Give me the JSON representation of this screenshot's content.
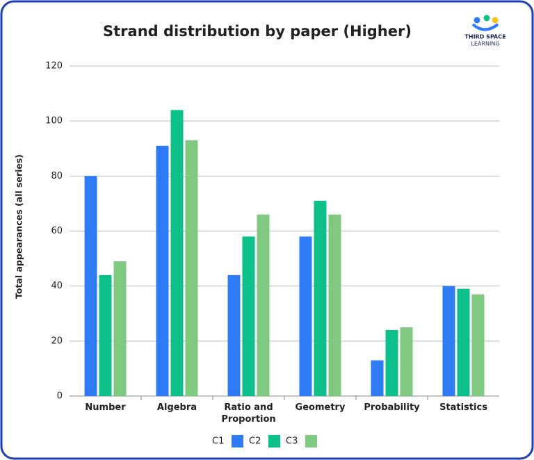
{
  "brand": {
    "line1": "THIRD SPACE",
    "line2": "LEARNING"
  },
  "chart_data": {
    "type": "bar",
    "title": "Strand distribution by paper (Higher)",
    "y_label": "Total appearances (all series)",
    "categories": [
      "Number",
      "Algebra",
      "Ratio and Proportion",
      "Geometry",
      "Probability",
      "Statistics"
    ],
    "series": [
      {
        "name": "C1",
        "color": "#2f7bf5",
        "values": [
          80,
          91,
          44,
          58,
          13,
          40
        ]
      },
      {
        "name": "C2",
        "color": "#0dbf88",
        "values": [
          44,
          104,
          58,
          71,
          24,
          39
        ]
      },
      {
        "name": "C3",
        "color": "#7fca80",
        "values": [
          49,
          93,
          66,
          66,
          25,
          37
        ]
      }
    ],
    "ylim": [
      0,
      120
    ],
    "yticks": [
      0,
      20,
      40,
      60,
      80,
      100,
      120
    ],
    "grid": true,
    "legend": "bottom"
  }
}
